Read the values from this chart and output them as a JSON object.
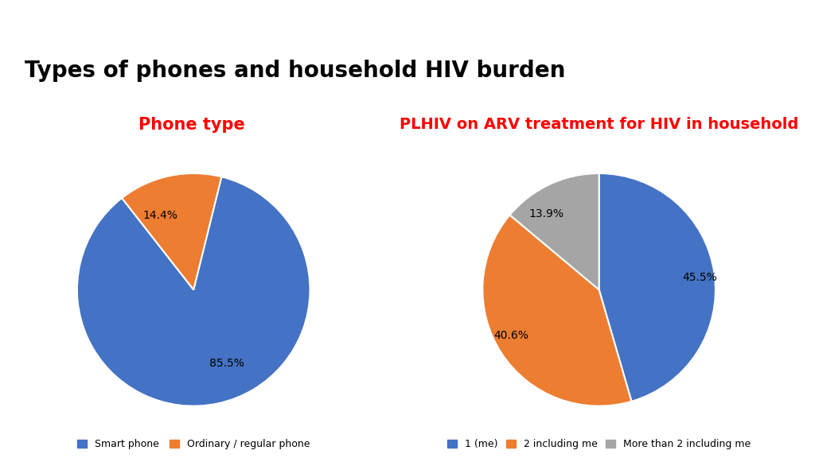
{
  "title": "Types of phones and household HIV burden",
  "title_fontsize": 20,
  "title_color": "#000000",
  "title_fontweight": "bold",
  "pie1_title": "Phone type",
  "pie1_title_color": "#ff0000",
  "pie1_title_fontsize": 15,
  "pie1_title_fontweight": "bold",
  "pie1_values": [
    85.5,
    14.4
  ],
  "pie1_labels": [
    "85.5%",
    "14.4%"
  ],
  "pie1_colors": [
    "#4472c4",
    "#ed7d31"
  ],
  "pie1_legend_labels": [
    "Smart phone",
    "Ordinary / regular phone"
  ],
  "pie1_startangle": 128,
  "pie2_title": "PLHIV on ARV treatment for HIV in household",
  "pie2_title_color": "#ff0000",
  "pie2_title_fontsize": 14,
  "pie2_title_fontweight": "bold",
  "pie2_values": [
    45.5,
    40.6,
    13.9
  ],
  "pie2_labels": [
    "45.5%",
    "40.6%",
    "13.9%"
  ],
  "pie2_colors": [
    "#4472c4",
    "#ed7d31",
    "#a5a5a5"
  ],
  "pie2_legend_labels": [
    "1 (me)",
    "2 including me",
    "More than 2 including me"
  ],
  "pie2_startangle": 90,
  "background_color": "#ffffff",
  "box_edge_color": "#c8c8c8"
}
